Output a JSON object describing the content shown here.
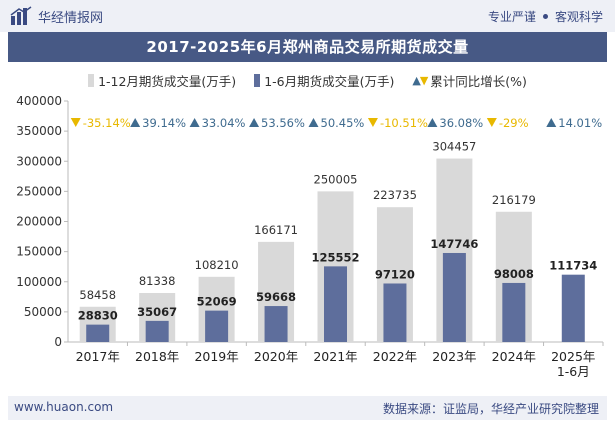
{
  "header": {
    "brand": "华经情报网",
    "right_items": [
      "专业严谨",
      "客观科学"
    ]
  },
  "title": "2017-2025年6月郑州商品交易所期货成交量",
  "legend": {
    "series1": "1-12月期货成交量(万手)",
    "series2": "1-6月期货成交量(万手)",
    "series3": "累计同比增长(%)"
  },
  "colors": {
    "full_year_bar": "#d9d9d9",
    "half_year_bar": "#5e6e9c",
    "title_bar": "#475985",
    "growth_up": "#3f6b8f",
    "growth_down": "#e8b800"
  },
  "chart_data": {
    "type": "bar",
    "categories": [
      "2017年",
      "2018年",
      "2019年",
      "2020年",
      "2021年",
      "2022年",
      "2023年",
      "2024年",
      "2025年\n1-6月"
    ],
    "series": [
      {
        "name": "1-12月期货成交量(万手)",
        "values": [
          58458,
          81338,
          108210,
          166171,
          250005,
          223735,
          304457,
          216179,
          null
        ]
      },
      {
        "name": "1-6月期货成交量(万手)",
        "values": [
          28830,
          35067,
          52069,
          59668,
          125552,
          97120,
          147746,
          98008,
          111734
        ]
      }
    ],
    "growth": {
      "name": "累计同比增长(%)",
      "labels": [
        "-35.14%",
        "39.14%",
        "33.04%",
        "53.56%",
        "50.45%",
        "-10.51%",
        "36.08%",
        "-29%",
        "14.01%"
      ],
      "direction": [
        "down",
        "up",
        "up",
        "up",
        "up",
        "down",
        "up",
        "down",
        "up"
      ]
    },
    "ylim": [
      0,
      400000
    ],
    "yticks": [
      0,
      50000,
      100000,
      150000,
      200000,
      250000,
      300000,
      350000,
      400000
    ],
    "grid": false,
    "legend_position": "top"
  },
  "footer": {
    "website": "www.huaon.com",
    "source": "数据来源：证监局，华经产业研究院整理"
  }
}
